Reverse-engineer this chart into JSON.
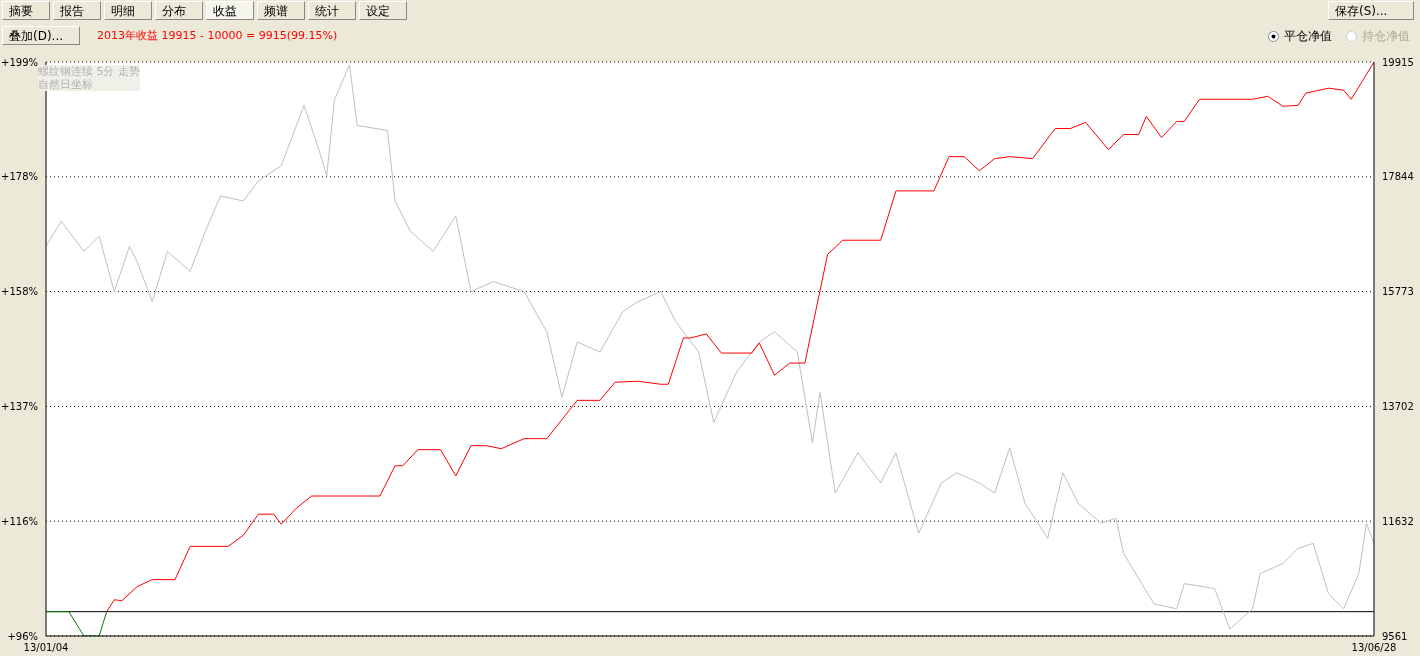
{
  "chart_data": {
    "type": "line",
    "subtitle": "2013年收益 19915 - 10000 = 9915(99.15%)",
    "annotations": [
      "摘要",
      "报告",
      "明细",
      "分布",
      "收益",
      "频谱",
      "统计",
      "设定",
      "保存(S)...",
      "叠加(D)...",
      "平仓净值",
      "持仓净值",
      "螺纹钢连续 5分 走势",
      "自然日坐标"
    ],
    "xlim": [
      "2013-01-04",
      "2013-06-28"
    ],
    "xticks": [
      {
        "value": "2013-01-04",
        "label": "13/01/04"
      },
      {
        "value": "2013-06-28",
        "label": "13/06/28"
      }
    ],
    "ylim": [
      95.61,
      199.15
    ],
    "yticks": [
      {
        "value": 95.61,
        "label": "+96%"
      },
      {
        "value": 116.32,
        "label": "+116%"
      },
      {
        "value": 137.02,
        "label": "+137%"
      },
      {
        "value": 157.73,
        "label": "+158%"
      },
      {
        "value": 178.44,
        "label": "+178%"
      },
      {
        "value": 199.15,
        "label": "+199%"
      }
    ],
    "y2lim": [
      9561,
      19915
    ],
    "y2ticks": [
      9561,
      11632,
      13702,
      15773,
      17844,
      19915
    ],
    "grid": "y",
    "marker": "none",
    "line_style": "solid",
    "ref_lines": [
      {
        "axis": "y2",
        "value": 10000,
        "color": "#000000"
      }
    ],
    "series": [
      {
        "color": "#c0c0c0",
        "axis": "y2",
        "x": [
          "2013-01-04",
          "2013-01-06",
          "2013-01-09",
          "2013-01-11",
          "2013-01-13",
          "2013-01-15",
          "2013-01-16",
          "2013-01-18",
          "2013-01-20",
          "2013-01-23",
          "2013-01-25",
          "2013-01-27",
          "2013-01-30",
          "2013-02-01",
          "2013-02-04",
          "2013-02-07",
          "2013-02-09",
          "2013-02-10",
          "2013-02-11",
          "2013-02-13",
          "2013-02-14",
          "2013-02-18",
          "2013-02-19",
          "2013-02-21",
          "2013-02-24",
          "2013-02-27",
          "2013-03-01",
          "2013-03-04",
          "2013-03-08",
          "2013-03-11",
          "2013-03-13",
          "2013-03-15",
          "2013-03-18",
          "2013-03-21",
          "2013-03-23",
          "2013-03-26",
          "2013-03-28",
          "2013-03-31",
          "2013-04-02",
          "2013-04-05",
          "2013-04-08",
          "2013-04-10",
          "2013-04-13",
          "2013-04-15",
          "2013-04-16",
          "2013-04-18",
          "2013-04-21",
          "2013-04-24",
          "2013-04-26",
          "2013-04-29",
          "2013-05-02",
          "2013-05-04",
          "2013-05-07",
          "2013-05-09",
          "2013-05-11",
          "2013-05-13",
          "2013-05-16",
          "2013-05-18",
          "2013-05-20",
          "2013-05-23",
          "2013-05-25",
          "2013-05-26",
          "2013-05-30",
          "2013-06-02",
          "2013-06-03",
          "2013-06-07",
          "2013-06-09",
          "2013-06-12",
          "2013-06-13",
          "2013-06-16",
          "2013-06-18",
          "2013-06-20",
          "2013-06-22",
          "2013-06-24",
          "2013-06-26",
          "2013-06-27",
          "2013-06-28"
        ],
        "values": [
          16591,
          17045,
          16500,
          16773,
          15773,
          16591,
          16318,
          15592,
          16500,
          16137,
          16863,
          17499,
          17408,
          17772,
          18044,
          19134,
          18317,
          17862,
          19225,
          19861,
          18771,
          18680,
          17408,
          16863,
          16500,
          17136,
          15773,
          15955,
          15773,
          15047,
          13866,
          14865,
          14684,
          15410,
          15592,
          15773,
          15228,
          14684,
          13412,
          14320,
          14865,
          15047,
          14684,
          13049,
          13957,
          12140,
          12867,
          12322,
          12867,
          11414,
          12322,
          12504,
          12322,
          12140,
          12958,
          11959,
          11323,
          12504,
          11959,
          11595,
          11686,
          11051,
          10142,
          10051,
          10506,
          10415,
          9688,
          10051,
          10687,
          10869,
          11141,
          11232,
          10324,
          10051,
          10687,
          11595,
          11232
        ]
      },
      {
        "color": "#008000",
        "axis": "y2",
        "x": [
          "2013-01-04",
          "2013-01-07",
          "2013-01-09",
          "2013-01-11",
          "2013-01-12"
        ],
        "values": [
          10000,
          10000,
          9561,
          9561,
          10000
        ]
      },
      {
        "color": "#ff0000",
        "axis": "y2",
        "x": [
          "2013-01-12",
          "2013-01-13",
          "2013-01-14",
          "2013-01-16",
          "2013-01-18",
          "2013-01-21",
          "2013-01-23",
          "2013-01-28",
          "2013-01-30",
          "2013-02-01",
          "2013-02-03",
          "2013-02-04",
          "2013-02-06",
          "2013-02-08",
          "2013-02-17",
          "2013-02-19",
          "2013-02-20",
          "2013-02-22",
          "2013-02-25",
          "2013-02-27",
          "2013-03-01",
          "2013-03-03",
          "2013-03-05",
          "2013-03-08",
          "2013-03-11",
          "2013-03-15",
          "2013-03-18",
          "2013-03-20",
          "2013-03-23",
          "2013-03-26",
          "2013-03-27",
          "2013-03-29",
          "2013-03-30",
          "2013-04-01",
          "2013-04-03",
          "2013-04-07",
          "2013-04-08",
          "2013-04-10",
          "2013-04-12",
          "2013-04-14",
          "2013-04-17",
          "2013-04-19",
          "2013-04-24",
          "2013-04-26",
          "2013-05-01",
          "2013-05-03",
          "2013-05-05",
          "2013-05-07",
          "2013-05-09",
          "2013-05-11",
          "2013-05-14",
          "2013-05-17",
          "2013-05-19",
          "2013-05-21",
          "2013-05-24",
          "2013-05-26",
          "2013-05-28",
          "2013-05-29",
          "2013-05-31",
          "2013-06-02",
          "2013-06-03",
          "2013-06-05",
          "2013-06-12",
          "2013-06-14",
          "2013-06-16",
          "2013-06-18",
          "2013-06-19",
          "2013-06-22",
          "2013-06-24",
          "2013-06-25",
          "2013-06-28"
        ],
        "values": [
          10000,
          10215,
          10197,
          10451,
          10578,
          10578,
          11178,
          11178,
          11378,
          11759,
          11759,
          11577,
          11868,
          12086,
          12086,
          12631,
          12631,
          12922,
          12922,
          12449,
          12994,
          12994,
          12940,
          13121,
          13121,
          13812,
          13812,
          14139,
          14157,
          14102,
          14102,
          14938,
          14938,
          15011,
          14665,
          14665,
          14847,
          14266,
          14484,
          14484,
          16446,
          16700,
          16700,
          17590,
          17590,
          18208,
          18208,
          17953,
          18171,
          18208,
          18171,
          18716,
          18716,
          18825,
          18335,
          18607,
          18607,
          18934,
          18553,
          18843,
          18843,
          19243,
          19243,
          19297,
          19116,
          19134,
          19352,
          19443,
          19406,
          19243,
          19915
        ]
      }
    ]
  }
}
